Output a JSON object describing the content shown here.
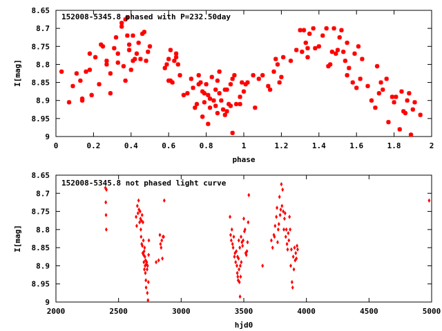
{
  "chart_data": [
    {
      "type": "scatter",
      "title": "152008-5345.8 phased with P=232.50day",
      "xlabel": "phase",
      "ylabel": "I[mag]",
      "xlim": [
        0,
        2
      ],
      "ylim": [
        8.65,
        9
      ],
      "y_inverted": true,
      "x_ticks": [
        "0",
        "0.2",
        "0.4",
        "0.6",
        "0.8",
        "1",
        "1.2",
        "1.4",
        "1.6",
        "1.8",
        "2"
      ],
      "x_tick_values": [
        0,
        0.2,
        0.4,
        0.6,
        0.8,
        1,
        1.2,
        1.4,
        1.6,
        1.8,
        2
      ],
      "y_ticks": [
        "8.65",
        "8.7",
        "8.75",
        "8.8",
        "8.85",
        "8.9",
        "8.95",
        "9"
      ],
      "y_tick_values": [
        8.65,
        8.7,
        8.75,
        8.8,
        8.85,
        8.9,
        8.95,
        9
      ],
      "marker_color": "#ff0000",
      "points": [
        [
          0.03,
          8.82
        ],
        [
          0.07,
          8.905
        ],
        [
          0.09,
          8.86
        ],
        [
          0.11,
          8.825
        ],
        [
          0.13,
          8.845
        ],
        [
          0.14,
          8.895
        ],
        [
          0.14,
          8.9
        ],
        [
          0.16,
          8.82
        ],
        [
          0.18,
          8.77
        ],
        [
          0.18,
          8.815
        ],
        [
          0.19,
          8.885
        ],
        [
          0.21,
          8.78
        ],
        [
          0.23,
          8.855
        ],
        [
          0.24,
          8.745
        ],
        [
          0.25,
          8.75
        ],
        [
          0.27,
          8.79
        ],
        [
          0.27,
          8.8
        ],
        [
          0.29,
          8.825
        ],
        [
          0.29,
          8.88
        ],
        [
          0.31,
          8.755
        ],
        [
          0.32,
          8.725
        ],
        [
          0.33,
          8.795
        ],
        [
          0.33,
          8.77
        ],
        [
          0.35,
          8.685
        ],
        [
          0.35,
          8.695
        ],
        [
          0.36,
          8.805
        ],
        [
          0.37,
          8.845
        ],
        [
          0.37,
          8.675
        ],
        [
          0.38,
          8.67
        ],
        [
          0.38,
          8.72
        ],
        [
          0.39,
          8.76
        ],
        [
          0.39,
          8.745
        ],
        [
          0.4,
          8.815
        ],
        [
          0.41,
          8.79
        ],
        [
          0.41,
          8.72
        ],
        [
          0.42,
          8.785
        ],
        [
          0.43,
          8.77
        ],
        [
          0.44,
          8.74
        ],
        [
          0.45,
          8.785
        ],
        [
          0.46,
          8.715
        ],
        [
          0.47,
          8.71
        ],
        [
          0.48,
          8.79
        ],
        [
          0.49,
          8.765
        ],
        [
          0.5,
          8.75
        ],
        [
          0.58,
          8.81
        ],
        [
          0.59,
          8.8
        ],
        [
          0.6,
          8.845
        ],
        [
          0.6,
          8.785
        ],
        [
          0.61,
          8.845
        ],
        [
          0.61,
          8.76
        ],
        [
          0.62,
          8.85
        ],
        [
          0.63,
          8.79
        ],
        [
          0.64,
          8.77
        ],
        [
          0.64,
          8.78
        ],
        [
          0.65,
          8.8
        ],
        [
          0.66,
          8.83
        ],
        [
          0.68,
          8.885
        ],
        [
          0.7,
          8.88
        ],
        [
          0.72,
          8.84
        ],
        [
          0.73,
          8.865
        ],
        [
          0.74,
          8.92
        ],
        [
          0.75,
          8.91
        ],
        [
          0.76,
          8.83
        ],
        [
          0.76,
          8.855
        ],
        [
          0.77,
          8.85
        ],
        [
          0.78,
          8.875
        ],
        [
          0.78,
          8.945
        ],
        [
          0.79,
          8.905
        ],
        [
          0.79,
          8.88
        ],
        [
          0.8,
          8.855
        ],
        [
          0.81,
          8.885
        ],
        [
          0.81,
          8.965
        ],
        [
          0.82,
          8.895
        ],
        [
          0.82,
          8.92
        ],
        [
          0.83,
          8.835
        ],
        [
          0.84,
          8.9
        ],
        [
          0.85,
          8.87
        ],
        [
          0.85,
          8.915
        ],
        [
          0.86,
          8.935
        ],
        [
          0.86,
          8.845
        ],
        [
          0.87,
          8.82
        ],
        [
          0.87,
          8.88
        ],
        [
          0.88,
          8.9
        ],
        [
          0.89,
          8.925
        ],
        [
          0.9,
          8.87
        ],
        [
          0.9,
          8.94
        ],
        [
          0.91,
          8.93
        ],
        [
          0.91,
          8.87
        ],
        [
          0.92,
          8.91
        ],
        [
          0.93,
          8.855
        ],
        [
          0.93,
          8.915
        ],
        [
          0.94,
          8.84
        ],
        [
          0.94,
          8.99
        ],
        [
          0.95,
          8.83
        ],
        [
          0.96,
          8.91
        ],
        [
          0.98,
          8.91
        ],
        [
          0.98,
          8.89
        ],
        [
          0.99,
          8.85
        ],
        [
          1.0,
          8.875
        ],
        [
          1.01,
          8.855
        ],
        [
          1.02,
          8.85
        ],
        [
          1.05,
          8.83
        ],
        [
          1.06,
          8.92
        ],
        [
          1.08,
          8.84
        ],
        [
          1.1,
          8.83
        ],
        [
          1.13,
          8.86
        ],
        [
          1.14,
          8.87
        ],
        [
          1.16,
          8.82
        ],
        [
          1.17,
          8.785
        ],
        [
          1.18,
          8.8
        ],
        [
          1.19,
          8.85
        ],
        [
          1.2,
          8.835
        ],
        [
          1.21,
          8.78
        ],
        [
          1.25,
          8.79
        ],
        [
          1.28,
          8.76
        ],
        [
          1.3,
          8.705
        ],
        [
          1.31,
          8.765
        ],
        [
          1.32,
          8.705
        ],
        [
          1.33,
          8.74
        ],
        [
          1.34,
          8.755
        ],
        [
          1.34,
          8.78
        ],
        [
          1.35,
          8.715
        ],
        [
          1.37,
          8.7
        ],
        [
          1.38,
          8.755
        ],
        [
          1.4,
          8.75
        ],
        [
          1.42,
          8.72
        ],
        [
          1.44,
          8.7
        ],
        [
          1.45,
          8.805
        ],
        [
          1.46,
          8.8
        ],
        [
          1.47,
          8.765
        ],
        [
          1.48,
          8.7
        ],
        [
          1.49,
          8.77
        ],
        [
          1.5,
          8.76
        ],
        [
          1.51,
          8.725
        ],
        [
          1.52,
          8.705
        ],
        [
          1.53,
          8.765
        ],
        [
          1.54,
          8.79
        ],
        [
          1.55,
          8.74
        ],
        [
          1.55,
          8.83
        ],
        [
          1.56,
          8.81
        ],
        [
          1.58,
          8.85
        ],
        [
          1.59,
          8.77
        ],
        [
          1.6,
          8.865
        ],
        [
          1.61,
          8.75
        ],
        [
          1.62,
          8.84
        ],
        [
          1.63,
          8.785
        ],
        [
          1.66,
          8.86
        ],
        [
          1.68,
          8.9
        ],
        [
          1.7,
          8.92
        ],
        [
          1.71,
          8.805
        ],
        [
          1.72,
          8.88
        ],
        [
          1.73,
          8.85
        ],
        [
          1.74,
          8.87
        ],
        [
          1.76,
          8.84
        ],
        [
          1.77,
          8.96
        ],
        [
          1.79,
          8.89
        ],
        [
          1.8,
          8.905
        ],
        [
          1.81,
          8.89
        ],
        [
          1.83,
          8.98
        ],
        [
          1.84,
          8.875
        ],
        [
          1.85,
          8.93
        ],
        [
          1.86,
          8.935
        ],
        [
          1.87,
          8.9
        ],
        [
          1.88,
          8.88
        ],
        [
          1.89,
          8.995
        ],
        [
          1.9,
          8.925
        ],
        [
          1.91,
          8.905
        ],
        [
          1.94,
          8.94
        ]
      ]
    },
    {
      "type": "scatter",
      "title": "152008-5345.8 not phased light curve",
      "xlabel": "hjd0",
      "ylabel": "I[mag]",
      "xlim": [
        2000,
        5000
      ],
      "ylim": [
        8.65,
        9
      ],
      "y_inverted": true,
      "x_ticks": [
        "2000",
        "2500",
        "3000",
        "3500",
        "4000",
        "4500",
        "5000"
      ],
      "x_tick_values": [
        2000,
        2500,
        3000,
        3500,
        4000,
        4500,
        5000
      ],
      "y_ticks": [
        "8.65",
        "8.7",
        "8.75",
        "8.8",
        "8.85",
        "8.9",
        "8.95",
        "9"
      ],
      "y_tick_values": [
        8.65,
        8.7,
        8.75,
        8.8,
        8.85,
        8.9,
        8.95,
        9
      ],
      "marker_color": "#ff0000",
      "points": [
        [
          2395,
          8.685
        ],
        [
          2398,
          8.725
        ],
        [
          2400,
          8.76
        ],
        [
          2402,
          8.8
        ],
        [
          2403,
          8.69
        ],
        [
          2640,
          8.765
        ],
        [
          2645,
          8.79
        ],
        [
          2650,
          8.735
        ],
        [
          2655,
          8.755
        ],
        [
          2660,
          8.72
        ],
        [
          2663,
          8.745
        ],
        [
          2668,
          8.78
        ],
        [
          2672,
          8.75
        ],
        [
          2675,
          8.77
        ],
        [
          2678,
          8.8
        ],
        [
          2680,
          8.82
        ],
        [
          2682,
          8.775
        ],
        [
          2685,
          8.84
        ],
        [
          2688,
          8.76
        ],
        [
          2690,
          8.845
        ],
        [
          2693,
          8.865
        ],
        [
          2695,
          8.78
        ],
        [
          2698,
          8.83
        ],
        [
          2700,
          8.87
        ],
        [
          2702,
          8.89
        ],
        [
          2704,
          8.86
        ],
        [
          2706,
          8.91
        ],
        [
          2708,
          8.85
        ],
        [
          2710,
          8.875
        ],
        [
          2712,
          8.9
        ],
        [
          2714,
          8.92
        ],
        [
          2716,
          8.885
        ],
        [
          2718,
          8.94
        ],
        [
          2720,
          8.96
        ],
        [
          2722,
          8.895
        ],
        [
          2725,
          8.89
        ],
        [
          2728,
          8.91
        ],
        [
          2730,
          8.975
        ],
        [
          2732,
          8.9
        ],
        [
          2735,
          8.995
        ],
        [
          2738,
          8.945
        ],
        [
          2740,
          8.87
        ],
        [
          2742,
          8.83
        ],
        [
          2800,
          8.89
        ],
        [
          2820,
          8.885
        ],
        [
          2830,
          8.815
        ],
        [
          2835,
          8.84
        ],
        [
          2840,
          8.85
        ],
        [
          2845,
          8.83
        ],
        [
          2850,
          8.88
        ],
        [
          2855,
          8.82
        ],
        [
          2860,
          8.82
        ],
        [
          2865,
          8.72
        ],
        [
          3390,
          8.765
        ],
        [
          3395,
          8.815
        ],
        [
          3400,
          8.83
        ],
        [
          3405,
          8.8
        ],
        [
          3410,
          8.84
        ],
        [
          3415,
          8.85
        ],
        [
          3420,
          8.82
        ],
        [
          3425,
          8.875
        ],
        [
          3430,
          8.865
        ],
        [
          3435,
          8.89
        ],
        [
          3440,
          8.86
        ],
        [
          3445,
          8.9
        ],
        [
          3448,
          8.92
        ],
        [
          3450,
          8.875
        ],
        [
          3452,
          8.93
        ],
        [
          3455,
          8.94
        ],
        [
          3458,
          8.88
        ],
        [
          3460,
          8.83
        ],
        [
          3462,
          8.91
        ],
        [
          3465,
          8.945
        ],
        [
          3468,
          8.85
        ],
        [
          3470,
          8.985
        ],
        [
          3472,
          8.9
        ],
        [
          3475,
          8.93
        ],
        [
          3478,
          8.82
        ],
        [
          3480,
          8.89
        ],
        [
          3485,
          8.835
        ],
        [
          3490,
          8.845
        ],
        [
          3495,
          8.83
        ],
        [
          3500,
          8.77
        ],
        [
          3505,
          8.805
        ],
        [
          3510,
          8.8
        ],
        [
          3515,
          8.865
        ],
        [
          3520,
          8.87
        ],
        [
          3525,
          8.86
        ],
        [
          3530,
          8.835
        ],
        [
          3535,
          8.78
        ],
        [
          3540,
          8.705
        ],
        [
          3650,
          8.9
        ],
        [
          3720,
          8.83
        ],
        [
          3730,
          8.85
        ],
        [
          3740,
          8.815
        ],
        [
          3745,
          8.82
        ],
        [
          3750,
          8.79
        ],
        [
          3760,
          8.765
        ],
        [
          3765,
          8.74
        ],
        [
          3770,
          8.835
        ],
        [
          3775,
          8.8
        ],
        [
          3780,
          8.785
        ],
        [
          3785,
          8.71
        ],
        [
          3790,
          8.76
        ],
        [
          3795,
          8.745
        ],
        [
          3800,
          8.675
        ],
        [
          3805,
          8.735
        ],
        [
          3810,
          8.69
        ],
        [
          3815,
          8.75
        ],
        [
          3820,
          8.8
        ],
        [
          3825,
          8.77
        ],
        [
          3830,
          8.755
        ],
        [
          3835,
          8.82
        ],
        [
          3840,
          8.8
        ],
        [
          3845,
          8.84
        ],
        [
          3850,
          8.855
        ],
        [
          3855,
          8.81
        ],
        [
          3860,
          8.83
        ],
        [
          3865,
          8.765
        ],
        [
          3870,
          8.8
        ],
        [
          3875,
          8.9
        ],
        [
          3880,
          8.855
        ],
        [
          3885,
          8.945
        ],
        [
          3890,
          8.96
        ],
        [
          3895,
          8.875
        ],
        [
          3900,
          8.91
        ],
        [
          3905,
          8.85
        ],
        [
          3910,
          8.885
        ],
        [
          3915,
          8.865
        ],
        [
          3920,
          8.88
        ],
        [
          3925,
          8.845
        ],
        [
          3930,
          8.855
        ],
        [
          4980,
          8.72
        ]
      ]
    }
  ]
}
